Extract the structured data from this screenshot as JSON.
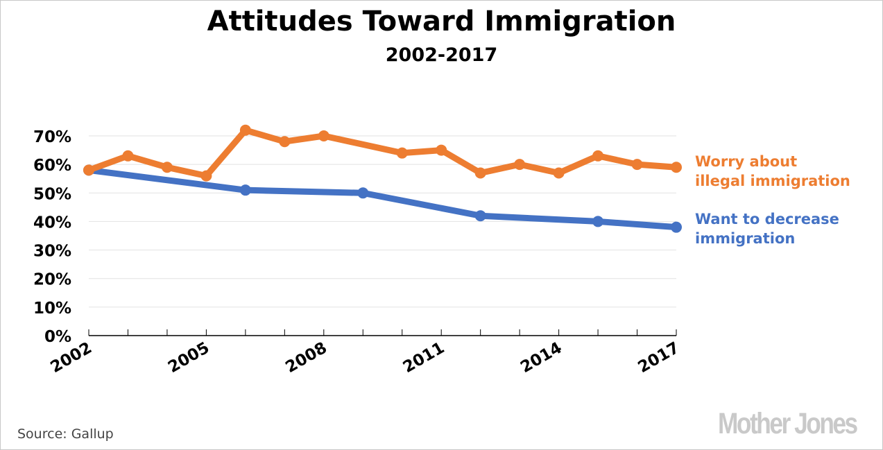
{
  "chart_data": {
    "type": "line",
    "title": "Attitudes Toward Immigration",
    "subtitle": "2002-2017",
    "xlabel": "",
    "ylabel": "",
    "xlim": [
      2002,
      2017
    ],
    "ylim": [
      0,
      70
    ],
    "grid": true,
    "y_ticks": [
      "0%",
      "10%",
      "20%",
      "30%",
      "40%",
      "50%",
      "60%",
      "70%"
    ],
    "y_tick_values": [
      0,
      10,
      20,
      30,
      40,
      50,
      60,
      70
    ],
    "x_ticks": [
      "2002",
      "2005",
      "2008",
      "2011",
      "2014",
      "2017"
    ],
    "x_tick_values": [
      2002,
      2005,
      2008,
      2011,
      2014,
      2017
    ],
    "x_minor_ticks": [
      2002,
      2003,
      2004,
      2005,
      2006,
      2007,
      2008,
      2009,
      2010,
      2011,
      2012,
      2013,
      2014,
      2015,
      2016,
      2017
    ],
    "legend_placement": "right",
    "series": [
      {
        "name": "Worry about illegal immigration",
        "legend_lines": [
          "Worry about",
          "illegal immigration"
        ],
        "color": "#ed7d31",
        "x": [
          2002,
          2003,
          2004,
          2005,
          2006,
          2007,
          2008,
          2010,
          2011,
          2012,
          2013,
          2014,
          2015,
          2016,
          2017
        ],
        "values": [
          58,
          63,
          59,
          56,
          72,
          68,
          70,
          64,
          65,
          57,
          60,
          57,
          63,
          60,
          59
        ]
      },
      {
        "name": "Want to decrease immigration",
        "legend_lines": [
          "Want to decrease",
          "immigration"
        ],
        "color": "#4472c4",
        "x": [
          2002,
          2006,
          2009,
          2012,
          2015,
          2017
        ],
        "values": [
          58,
          51,
          50,
          42,
          40,
          38
        ]
      }
    ]
  },
  "footer": {
    "source": "Source:  Gallup",
    "logo_text": "Mother Jones"
  }
}
